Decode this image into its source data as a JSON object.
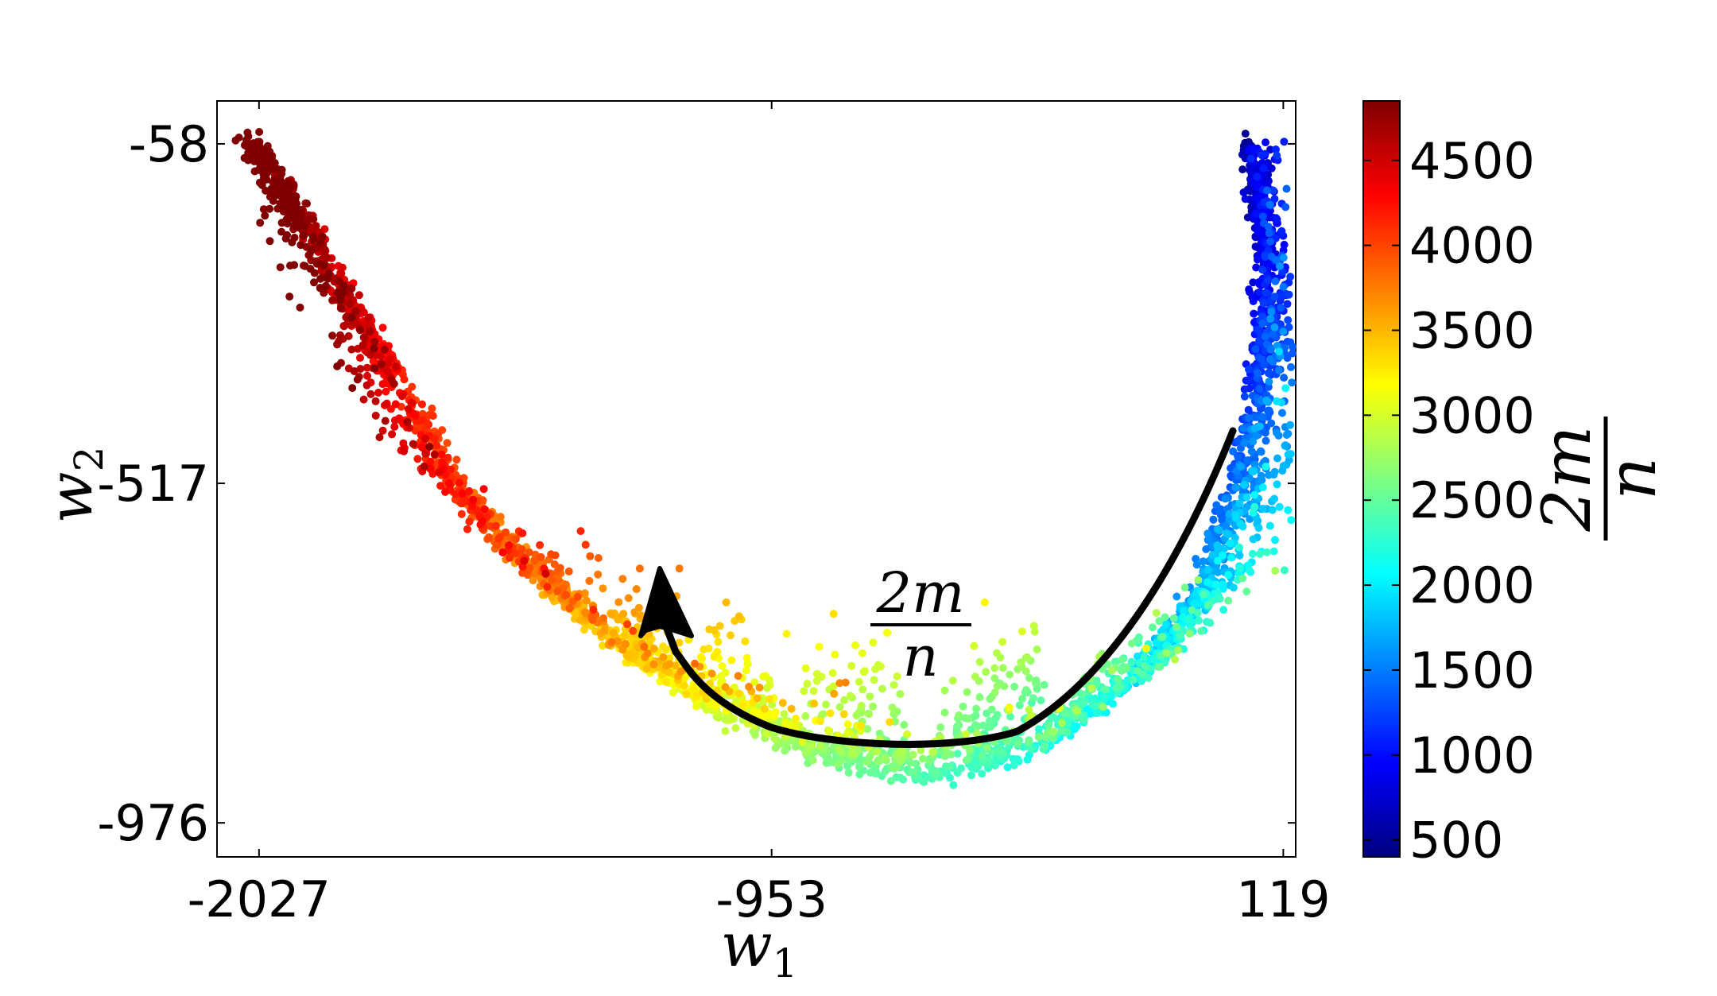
{
  "chart_data": {
    "type": "scatter",
    "xlabel": "w",
    "xlabel_sub": "1",
    "ylabel": "w",
    "ylabel_sub": "2",
    "x_ticks": [
      -2027,
      -953,
      119
    ],
    "x_tick_labels": [
      "-2027",
      "-953",
      "119"
    ],
    "y_ticks": [
      -58,
      -517,
      -976
    ],
    "y_tick_labels": [
      "-58",
      "-517",
      "-976"
    ],
    "xlim": [
      -2115,
      145
    ],
    "ylim": [
      -1022,
      0
    ],
    "grid": false,
    "colormap": "jet",
    "colorbar": {
      "range": [
        400,
        4850
      ],
      "ticks": [
        500,
        1000,
        1500,
        2000,
        2500,
        3000,
        3500,
        4000,
        4500
      ],
      "tick_labels": [
        "500",
        "1000",
        "1500",
        "2000",
        "2500",
        "3000",
        "3500",
        "4000",
        "4500"
      ],
      "label_numerator": "2m",
      "label_denominator": "n"
    },
    "annotation": {
      "numerator": "2m",
      "denominator": "n",
      "arrow_direction": "from low-value right arm along the curve bottom toward the high-value left arm"
    },
    "trend_points": [
      {
        "x": 40,
        "y": -60,
        "value": 450
      },
      {
        "x": 70,
        "y": -200,
        "value": 700
      },
      {
        "x": 60,
        "y": -350,
        "value": 1000
      },
      {
        "x": 10,
        "y": -520,
        "value": 1300
      },
      {
        "x": -80,
        "y": -680,
        "value": 1600
      },
      {
        "x": -220,
        "y": -800,
        "value": 1900
      },
      {
        "x": -420,
        "y": -890,
        "value": 2150
      },
      {
        "x": -640,
        "y": -920,
        "value": 2350
      },
      {
        "x": -860,
        "y": -890,
        "value": 2600
      },
      {
        "x": -1060,
        "y": -830,
        "value": 2900
      },
      {
        "x": -1230,
        "y": -760,
        "value": 3200
      },
      {
        "x": -1420,
        "y": -660,
        "value": 3500
      },
      {
        "x": -1600,
        "y": -520,
        "value": 3800
      },
      {
        "x": -1760,
        "y": -340,
        "value": 4150
      },
      {
        "x": -1920,
        "y": -170,
        "value": 4500
      },
      {
        "x": -2027,
        "y": -58,
        "value": 4800
      }
    ]
  }
}
